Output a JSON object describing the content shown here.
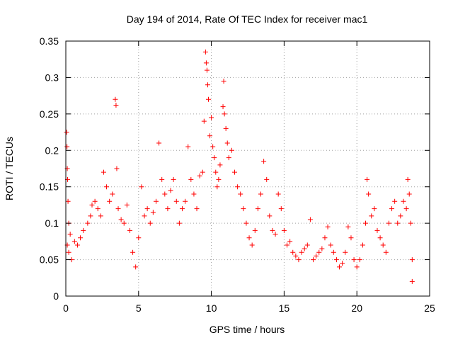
{
  "chart_data": {
    "type": "scatter",
    "title": "Day 194 of 2014, Rate Of TEC Index for receiver mac1",
    "xlabel": "GPS time / hours",
    "ylabel": "ROTI / TECUs",
    "xlim": [
      0,
      25
    ],
    "ylim": [
      0,
      0.35
    ],
    "xticks": [
      0,
      5,
      10,
      15,
      20,
      25
    ],
    "yticks": [
      0,
      0.05,
      0.1,
      0.15,
      0.2,
      0.25,
      0.3,
      0.35
    ],
    "xtick_labels": [
      "0",
      "5",
      "10",
      "15",
      "20",
      "25"
    ],
    "ytick_labels": [
      "0",
      "0.05",
      "0.1",
      "0.15",
      "0.2",
      "0.25",
      "0.3",
      "0.35"
    ],
    "grid": true,
    "marker": "plus",
    "marker_color": "#ff0000",
    "series": [
      {
        "name": "",
        "points": [
          [
            0.05,
            0.225
          ],
          [
            0.08,
            0.205
          ],
          [
            0.1,
            0.175
          ],
          [
            0.12,
            0.16
          ],
          [
            0.15,
            0.13
          ],
          [
            0.2,
            0.1
          ],
          [
            0.3,
            0.085
          ],
          [
            0.1,
            0.07
          ],
          [
            0.2,
            0.06
          ],
          [
            0.4,
            0.05
          ],
          [
            0.6,
            0.075
          ],
          [
            0.8,
            0.07
          ],
          [
            1.0,
            0.08
          ],
          [
            1.2,
            0.09
          ],
          [
            1.5,
            0.1
          ],
          [
            1.7,
            0.11
          ],
          [
            1.8,
            0.125
          ],
          [
            2.0,
            0.13
          ],
          [
            2.2,
            0.12
          ],
          [
            2.4,
            0.11
          ],
          [
            2.6,
            0.17
          ],
          [
            2.8,
            0.15
          ],
          [
            3.0,
            0.13
          ],
          [
            3.2,
            0.14
          ],
          [
            3.4,
            0.27
          ],
          [
            3.45,
            0.262
          ],
          [
            3.5,
            0.175
          ],
          [
            3.6,
            0.12
          ],
          [
            3.8,
            0.105
          ],
          [
            4.0,
            0.1
          ],
          [
            4.2,
            0.125
          ],
          [
            4.4,
            0.09
          ],
          [
            4.6,
            0.06
          ],
          [
            4.8,
            0.04
          ],
          [
            5.0,
            0.08
          ],
          [
            5.2,
            0.15
          ],
          [
            5.4,
            0.11
          ],
          [
            5.6,
            0.12
          ],
          [
            5.8,
            0.1
          ],
          [
            6.0,
            0.115
          ],
          [
            6.2,
            0.13
          ],
          [
            6.4,
            0.21
          ],
          [
            6.6,
            0.16
          ],
          [
            6.8,
            0.14
          ],
          [
            7.0,
            0.12
          ],
          [
            7.2,
            0.145
          ],
          [
            7.4,
            0.16
          ],
          [
            7.6,
            0.13
          ],
          [
            7.8,
            0.1
          ],
          [
            8.0,
            0.12
          ],
          [
            8.2,
            0.13
          ],
          [
            8.4,
            0.205
          ],
          [
            8.6,
            0.16
          ],
          [
            8.8,
            0.14
          ],
          [
            9.0,
            0.12
          ],
          [
            9.2,
            0.165
          ],
          [
            9.4,
            0.17
          ],
          [
            9.5,
            0.24
          ],
          [
            9.6,
            0.335
          ],
          [
            9.65,
            0.32
          ],
          [
            9.7,
            0.31
          ],
          [
            9.75,
            0.29
          ],
          [
            9.8,
            0.27
          ],
          [
            9.9,
            0.22
          ],
          [
            10.0,
            0.245
          ],
          [
            10.1,
            0.205
          ],
          [
            10.2,
            0.19
          ],
          [
            10.3,
            0.17
          ],
          [
            10.4,
            0.15
          ],
          [
            10.5,
            0.16
          ],
          [
            10.6,
            0.18
          ],
          [
            10.8,
            0.26
          ],
          [
            10.85,
            0.295
          ],
          [
            10.9,
            0.25
          ],
          [
            11.0,
            0.23
          ],
          [
            11.1,
            0.21
          ],
          [
            11.2,
            0.19
          ],
          [
            11.4,
            0.2
          ],
          [
            11.6,
            0.17
          ],
          [
            11.8,
            0.15
          ],
          [
            12.0,
            0.14
          ],
          [
            12.2,
            0.12
          ],
          [
            12.4,
            0.1
          ],
          [
            12.6,
            0.08
          ],
          [
            12.8,
            0.07
          ],
          [
            13.0,
            0.09
          ],
          [
            13.2,
            0.12
          ],
          [
            13.4,
            0.14
          ],
          [
            13.6,
            0.185
          ],
          [
            13.8,
            0.16
          ],
          [
            14.0,
            0.11
          ],
          [
            14.2,
            0.09
          ],
          [
            14.4,
            0.085
          ],
          [
            14.6,
            0.14
          ],
          [
            14.8,
            0.12
          ],
          [
            15.0,
            0.09
          ],
          [
            15.2,
            0.07
          ],
          [
            15.4,
            0.075
          ],
          [
            15.6,
            0.06
          ],
          [
            15.8,
            0.055
          ],
          [
            16.0,
            0.05
          ],
          [
            16.2,
            0.06
          ],
          [
            16.4,
            0.065
          ],
          [
            16.6,
            0.07
          ],
          [
            16.8,
            0.105
          ],
          [
            17.0,
            0.05
          ],
          [
            17.2,
            0.055
          ],
          [
            17.4,
            0.06
          ],
          [
            17.6,
            0.065
          ],
          [
            17.8,
            0.08
          ],
          [
            18.0,
            0.095
          ],
          [
            18.2,
            0.07
          ],
          [
            18.4,
            0.06
          ],
          [
            18.6,
            0.05
          ],
          [
            18.8,
            0.04
          ],
          [
            19.0,
            0.045
          ],
          [
            19.2,
            0.06
          ],
          [
            19.4,
            0.095
          ],
          [
            19.6,
            0.08
          ],
          [
            19.8,
            0.05
          ],
          [
            20.0,
            0.04
          ],
          [
            20.2,
            0.05
          ],
          [
            20.4,
            0.07
          ],
          [
            20.6,
            0.1
          ],
          [
            20.7,
            0.16
          ],
          [
            20.8,
            0.14
          ],
          [
            21.0,
            0.11
          ],
          [
            21.2,
            0.12
          ],
          [
            21.4,
            0.09
          ],
          [
            21.6,
            0.08
          ],
          [
            21.8,
            0.07
          ],
          [
            22.0,
            0.06
          ],
          [
            22.2,
            0.1
          ],
          [
            22.4,
            0.12
          ],
          [
            22.6,
            0.13
          ],
          [
            22.8,
            0.1
          ],
          [
            23.0,
            0.11
          ],
          [
            23.2,
            0.13
          ],
          [
            23.4,
            0.12
          ],
          [
            23.5,
            0.16
          ],
          [
            23.6,
            0.14
          ],
          [
            23.7,
            0.1
          ],
          [
            23.8,
            0.05
          ],
          [
            23.8,
            0.02
          ]
        ]
      }
    ]
  }
}
